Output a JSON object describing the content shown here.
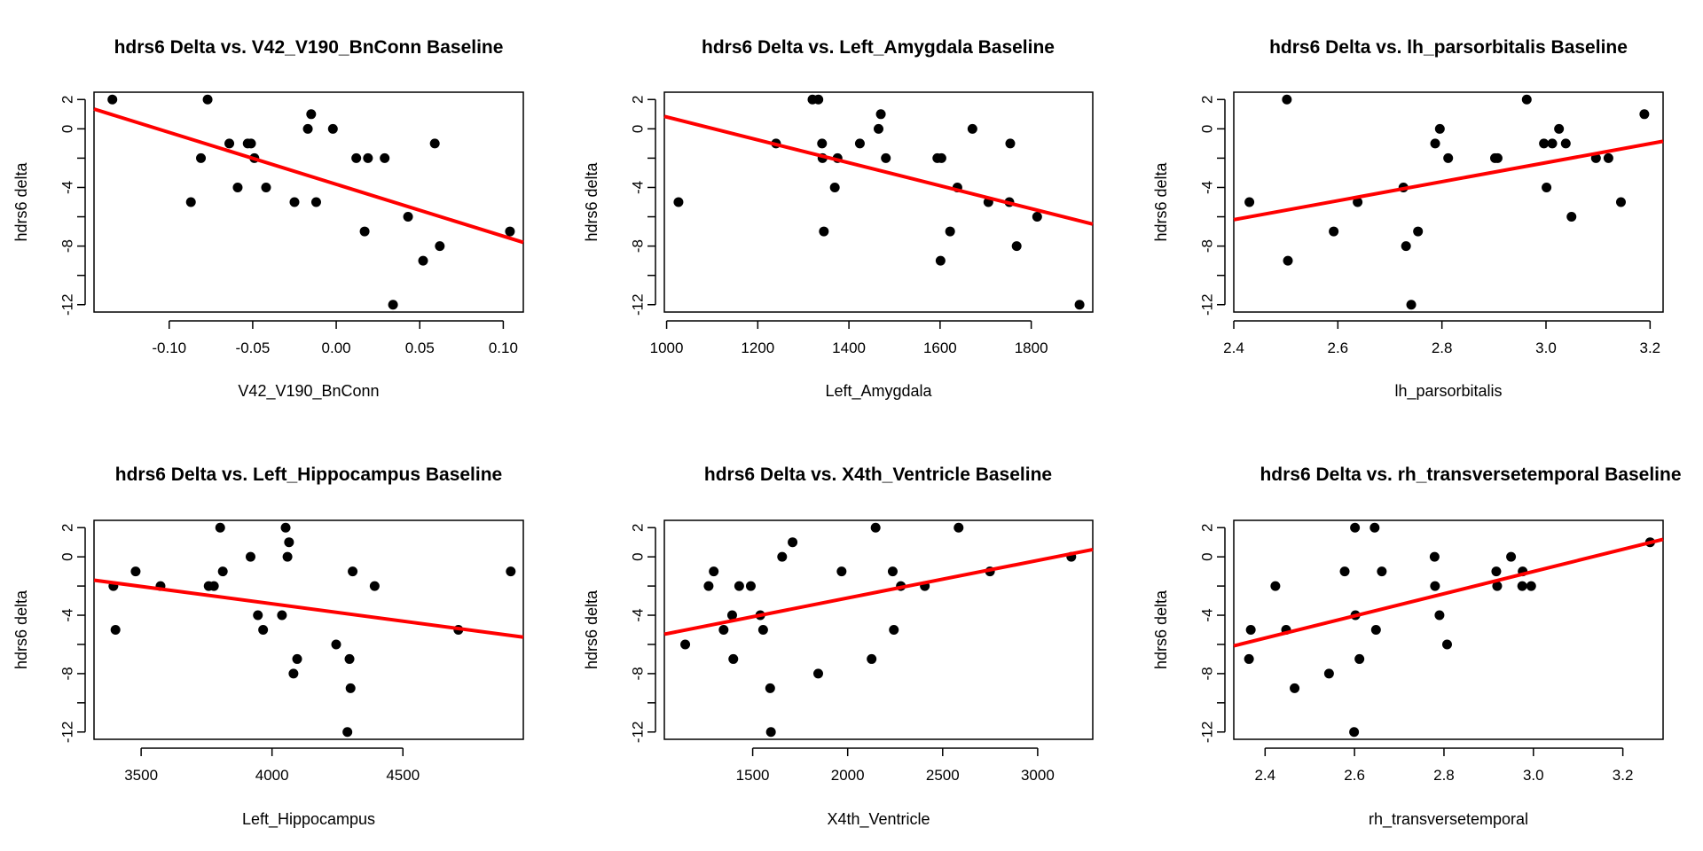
{
  "colors": {
    "points": "#000000",
    "fit_line": "#ff0000",
    "axes": "#000000"
  },
  "chart_data": [
    {
      "type": "scatter",
      "title": "hdrs6 Delta vs. V42_V190_BnConn Baseline",
      "xlabel": "V42_V190_BnConn",
      "ylabel": "hdrs6 delta",
      "xlim": [
        -0.145,
        0.112
      ],
      "ylim": [
        -12.5,
        2.5
      ],
      "xticks": [
        -0.1,
        -0.05,
        0.0,
        0.05,
        0.1
      ],
      "xtick_labels": [
        "-0.10",
        "-0.05",
        "0.00",
        "0.05",
        "0.10"
      ],
      "yticks": [
        -12,
        -10,
        -8,
        -6,
        -4,
        -2,
        0,
        2
      ],
      "ytick_labels": [
        "-12",
        "",
        "-8",
        "",
        "-4",
        "",
        "0",
        "2"
      ],
      "x": [
        -0.134,
        -0.077,
        -0.087,
        -0.081,
        -0.064,
        -0.059,
        -0.053,
        -0.051,
        -0.049,
        -0.042,
        -0.025,
        -0.017,
        -0.015,
        -0.012,
        -0.002,
        0.012,
        0.017,
        0.019,
        0.029,
        0.034,
        0.043,
        0.052,
        0.059,
        0.062,
        0.104
      ],
      "y": [
        2,
        2,
        -5,
        -2,
        -1,
        -4,
        -1,
        -1,
        -2,
        -4,
        -5,
        0,
        1,
        -5,
        0,
        -2,
        -7,
        -2,
        -2,
        -12,
        -6,
        -9,
        -1,
        -8,
        -7
      ],
      "fit": {
        "x": [
          -0.145,
          0.112
        ],
        "y": [
          1.35,
          -7.75
        ]
      },
      "grid": false
    },
    {
      "type": "scatter",
      "title": "hdrs6 Delta vs. Left_Amygdala Baseline",
      "xlabel": "Left_Amygdala",
      "ylabel": "hdrs6 delta",
      "xlim": [
        995,
        1935
      ],
      "ylim": [
        -12.5,
        2.5
      ],
      "xticks": [
        1000,
        1200,
        1400,
        1600,
        1800
      ],
      "xtick_labels": [
        "1000",
        "1200",
        "1400",
        "1600",
        "1800"
      ],
      "yticks": [
        -12,
        -10,
        -8,
        -6,
        -4,
        -2,
        0,
        2
      ],
      "ytick_labels": [
        "-12",
        "",
        "-8",
        "",
        "-4",
        "",
        "0",
        "2"
      ],
      "x": [
        1026,
        1240,
        1320,
        1333,
        1341,
        1342,
        1345,
        1369,
        1375,
        1424,
        1465,
        1470,
        1481,
        1594,
        1601,
        1603,
        1622,
        1638,
        1671,
        1706,
        1752,
        1754,
        1768,
        1813,
        1906
      ],
      "y": [
        -5,
        -1,
        2,
        2,
        -1,
        -2,
        -7,
        -4,
        -2,
        -1,
        0,
        1,
        -2,
        -2,
        -9,
        -2,
        -7,
        -4,
        0,
        -5,
        -5,
        -1,
        -8,
        -6,
        -12
      ],
      "fit": {
        "x": [
          995,
          1935
        ],
        "y": [
          0.85,
          -6.5
        ]
      },
      "grid": false
    },
    {
      "type": "scatter",
      "title": "hdrs6 Delta vs. lh_parsorbitalis Baseline",
      "xlabel": "lh_parsorbitalis",
      "ylabel": "hdrs6 delta",
      "xlim": [
        2.4,
        3.225
      ],
      "ylim": [
        -12.5,
        2.5
      ],
      "xticks": [
        2.4,
        2.6,
        2.8,
        3.0,
        3.2
      ],
      "xtick_labels": [
        "2.4",
        "2.6",
        "2.8",
        "3.0",
        "3.2"
      ],
      "yticks": [
        -12,
        -10,
        -8,
        -6,
        -4,
        -2,
        0,
        2
      ],
      "ytick_labels": [
        "-12",
        "",
        "-8",
        "",
        "-4",
        "",
        "0",
        "2"
      ],
      "x": [
        2.43,
        2.502,
        2.504,
        2.592,
        2.638,
        2.726,
        2.731,
        2.741,
        2.754,
        2.787,
        2.796,
        2.812,
        2.902,
        2.907,
        2.963,
        2.996,
        3.001,
        3.012,
        3.025,
        3.038,
        3.049,
        3.096,
        3.12,
        3.144,
        3.189
      ],
      "y": [
        -5,
        2,
        -9,
        -7,
        -5,
        -4,
        -8,
        -12,
        -7,
        -1,
        0,
        -2,
        -2,
        -2,
        2,
        -1,
        -4,
        -1,
        0,
        -1,
        -6,
        -2,
        -2,
        -5,
        1
      ],
      "fit": {
        "x": [
          2.4,
          3.225
        ],
        "y": [
          -6.2,
          -0.85
        ]
      },
      "grid": false
    },
    {
      "type": "scatter",
      "title": "hdrs6 Delta vs. Left_Hippocampus Baseline",
      "xlabel": "Left_Hippocampus",
      "ylabel": "hdrs6 delta",
      "xlim": [
        3320,
        4960
      ],
      "ylim": [
        -12.5,
        2.5
      ],
      "xticks": [
        3500,
        4000,
        4500
      ],
      "xtick_labels": [
        "3500",
        "4000",
        "4500"
      ],
      "yticks": [
        -12,
        -10,
        -8,
        -6,
        -4,
        -2,
        0,
        2
      ],
      "ytick_labels": [
        "-12",
        "",
        "-8",
        "",
        "-4",
        "",
        "0",
        "2"
      ],
      "x": [
        3394,
        3402,
        3479,
        3574,
        3758,
        3778,
        3802,
        3812,
        3918,
        3946,
        3966,
        4038,
        4052,
        4059,
        4065,
        4082,
        4096,
        4245,
        4288,
        4296,
        4300,
        4308,
        4392,
        4712,
        4912
      ],
      "y": [
        -2,
        -5,
        -1,
        -2,
        -2,
        -2,
        2,
        -1,
        0,
        -4,
        -5,
        -4,
        2,
        0,
        1,
        -8,
        -7,
        -6,
        -12,
        -7,
        -9,
        -1,
        -2,
        -5,
        -1
      ],
      "fit": {
        "x": [
          3320,
          4960
        ],
        "y": [
          -1.6,
          -5.5
        ]
      },
      "grid": false
    },
    {
      "type": "scatter",
      "title": "hdrs6 Delta vs. X4th_Ventricle Baseline",
      "xlabel": "X4th_Ventricle",
      "ylabel": "hdrs6 delta",
      "xlim": [
        1035,
        3290
      ],
      "ylim": [
        -12.5,
        2.5
      ],
      "xticks": [
        1500,
        2000,
        2500,
        3000
      ],
      "xtick_labels": [
        "1500",
        "2000",
        "2500",
        "3000"
      ],
      "yticks": [
        -12,
        -10,
        -8,
        -6,
        -4,
        -2,
        0,
        2
      ],
      "ytick_labels": [
        "-12",
        "",
        "-8",
        "",
        "-4",
        "",
        "0",
        "2"
      ],
      "x": [
        1145,
        1268,
        1295,
        1347,
        1392,
        1398,
        1429,
        1490,
        1540,
        1555,
        1592,
        1596,
        1655,
        1710,
        1845,
        1968,
        2126,
        2147,
        2237,
        2243,
        2280,
        2406,
        2584,
        2749,
        3177
      ],
      "y": [
        -6,
        -2,
        -1,
        -5,
        -4,
        -7,
        -2,
        -2,
        -4,
        -5,
        -9,
        -12,
        0,
        1,
        -8,
        -1,
        -7,
        2,
        -1,
        -5,
        -2,
        -2,
        2,
        -1,
        0
      ],
      "fit": {
        "x": [
          1035,
          3290
        ],
        "y": [
          -5.3,
          0.5
        ]
      },
      "grid": false
    },
    {
      "type": "scatter",
      "title": "hdrs6 Delta vs. rh_transversetemporal Baseline",
      "xlabel": "rh_transversetemporal",
      "ylabel": "hdrs6 delta",
      "xlim": [
        2.33,
        3.29
      ],
      "ylim": [
        -12.5,
        2.5
      ],
      "xticks": [
        2.4,
        2.6,
        2.8,
        3.0,
        3.2
      ],
      "xtick_labels": [
        "2.4",
        "2.6",
        "2.8",
        "3.0",
        "3.2"
      ],
      "yticks": [
        -12,
        -10,
        -8,
        -6,
        -4,
        -2,
        0,
        2
      ],
      "ytick_labels": [
        "-12",
        "",
        "-8",
        "",
        "-4",
        "",
        "0",
        "2"
      ],
      "x": [
        2.364,
        2.368,
        2.423,
        2.447,
        2.466,
        2.543,
        2.578,
        2.599,
        2.601,
        2.602,
        2.611,
        2.645,
        2.648,
        2.661,
        2.779,
        2.78,
        2.79,
        2.807,
        2.917,
        2.919,
        2.95,
        2.975,
        2.976,
        2.995,
        3.261
      ],
      "y": [
        -7,
        -5,
        -2,
        -5,
        -9,
        -8,
        -1,
        -12,
        2,
        -4,
        -7,
        2,
        -5,
        -1,
        0,
        -2,
        -4,
        -6,
        -1,
        -2,
        0,
        -2,
        -1,
        -2,
        1
      ],
      "fit": {
        "x": [
          2.33,
          3.29
        ],
        "y": [
          -6.1,
          1.2
        ]
      },
      "grid": false
    }
  ]
}
